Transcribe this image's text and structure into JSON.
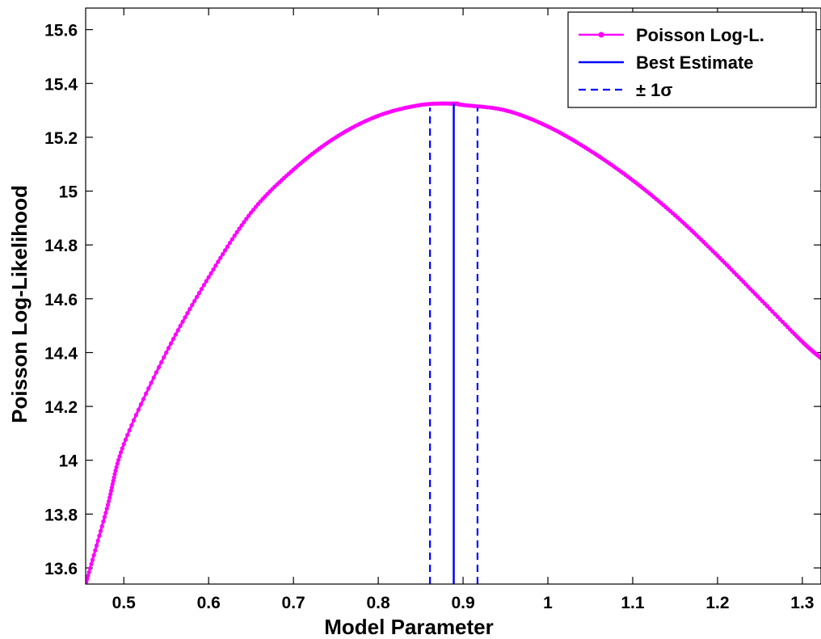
{
  "chart_data": {
    "type": "line",
    "title": "",
    "xlabel": "Model Parameter",
    "ylabel": "Poisson Log-Likelihood",
    "xlim": [
      0.455,
      1.322
    ],
    "ylim": [
      13.54,
      15.68
    ],
    "xticks": [
      0.5,
      0.6,
      0.7,
      0.8,
      0.9,
      1,
      1.1,
      1.2,
      1.3
    ],
    "xtick_labels": [
      "0.5",
      "0.6",
      "0.7",
      "0.8",
      "0.9",
      "1",
      "1.1",
      "1.2",
      "1.3"
    ],
    "yticks": [
      13.6,
      13.8,
      14,
      14.2,
      14.4,
      14.6,
      14.8,
      15,
      15.2,
      15.4,
      15.6
    ],
    "ytick_labels": [
      "13.6",
      "13.8",
      "14",
      "14.2",
      "14.4",
      "14.6",
      "14.8",
      "15",
      "15.2",
      "15.4",
      "15.6"
    ],
    "grid": false,
    "legend_position": "top-right",
    "series": [
      {
        "name": "Poisson Log-L.",
        "color": "#ff00ff",
        "style": "solid-with-dots",
        "x": [
          0.455,
          0.48,
          0.5,
          0.55,
          0.6,
          0.65,
          0.7,
          0.75,
          0.8,
          0.85,
          0.889,
          0.9,
          0.95,
          1.0,
          1.05,
          1.1,
          1.15,
          1.2,
          1.25,
          1.3,
          1.322
        ],
        "y": [
          13.54,
          13.82,
          14.06,
          14.4,
          14.68,
          14.92,
          15.08,
          15.2,
          15.28,
          15.32,
          15.325,
          15.32,
          15.3,
          15.24,
          15.15,
          15.04,
          14.91,
          14.76,
          14.6,
          14.44,
          14.38
        ]
      },
      {
        "name": "Best Estimate",
        "color": "#0000ff",
        "style": "solid",
        "type": "vline",
        "x": 0.889,
        "y_range": [
          13.54,
          15.325
        ]
      },
      {
        "name": "± 1σ",
        "color": "#0000ff",
        "style": "dashed",
        "type": "vlines",
        "x": [
          0.861,
          0.917
        ],
        "y_range": [
          13.54,
          15.31
        ]
      }
    ]
  }
}
